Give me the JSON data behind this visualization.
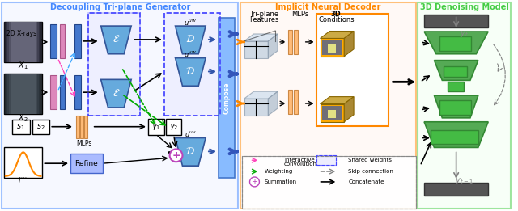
{
  "title_left": "Decoupling Tri-plane Generator",
  "title_middle": "Implicit Neural Decoder",
  "title_right": "3D Denoising Model",
  "title_left_color": "#4488FF",
  "title_middle_color": "#FF8800",
  "title_right_color": "#44CC44",
  "bg_left": "#F0F4FF",
  "bg_middle": "#FFF8F0",
  "bg_right": "#F0FFF0",
  "border_left": "#4488FF",
  "border_middle": "#FF8800",
  "border_right": "#44CC44",
  "compose_color": "#88BBFF",
  "encoder_color": "#5599DD",
  "decoder_color": "#5599DD",
  "blue_bar_color": "#4477CC",
  "pink_bar_color": "#DD88BB",
  "orange_bar_color": "#FFBB77",
  "green_color": "#44AA44",
  "legend_items": [
    "Interactive convolution",
    "Weighting",
    "Summation",
    "Shared weights",
    "Skip connection",
    "Concatenate"
  ]
}
